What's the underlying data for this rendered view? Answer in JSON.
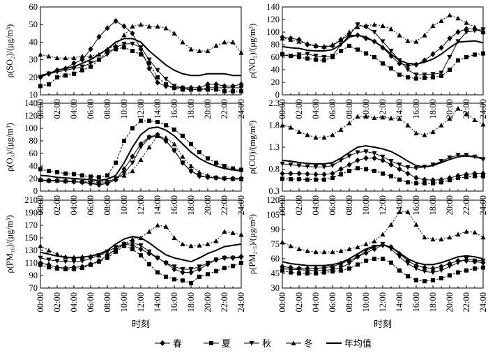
{
  "chart_data": [
    {
      "type": "line",
      "ylabel": "ρ(SO₂)/(μg/m³)",
      "xlabel": "",
      "ylim": [
        10,
        60
      ],
      "yticks": [
        10,
        20,
        30,
        40,
        50,
        60
      ],
      "x": [
        "00:00",
        "01:00",
        "02:00",
        "03:00",
        "04:00",
        "05:00",
        "06:00",
        "07:00",
        "08:00",
        "09:00",
        "10:00",
        "11:00",
        "12:00",
        "13:00",
        "14:00",
        "15:00",
        "16:00",
        "17:00",
        "18:00",
        "19:00",
        "20:00",
        "21:00",
        "22:00",
        "23:00",
        "24:00"
      ],
      "series": [
        {
          "name": "春",
          "values": [
            20,
            22,
            24,
            25,
            28,
            30,
            36,
            43,
            48,
            52,
            49,
            45,
            36,
            25,
            17,
            15,
            14,
            14,
            14,
            14,
            16,
            16,
            15,
            15,
            16
          ]
        },
        {
          "name": "夏",
          "values": [
            15,
            16,
            20,
            21,
            22,
            24,
            26,
            30,
            35,
            36,
            37,
            35,
            33,
            28,
            20,
            16,
            14,
            13,
            13,
            13,
            13,
            13,
            12,
            12,
            12
          ]
        },
        {
          "name": "秋",
          "values": [
            20,
            22,
            23,
            24,
            25,
            26,
            28,
            30,
            33,
            37,
            39,
            39,
            37,
            30,
            24,
            19,
            15,
            14,
            13,
            13,
            14,
            14,
            14,
            14,
            14
          ]
        },
        {
          "name": "冬",
          "values": [
            33,
            32,
            31,
            31,
            31,
            32,
            32,
            33,
            36,
            38,
            44,
            49,
            50,
            49,
            49,
            48,
            45,
            40,
            36,
            35,
            35,
            38,
            40,
            40,
            34
          ]
        },
        {
          "name": "年均值",
          "values": [
            21,
            22,
            24,
            25,
            26,
            28,
            30,
            33,
            36,
            40,
            42,
            42,
            40,
            35,
            31,
            27,
            24,
            22,
            21,
            21,
            22,
            22,
            22,
            21,
            21
          ]
        }
      ]
    },
    {
      "type": "line",
      "ylabel": "ρ(NO₂)/(μg/m³)",
      "xlabel": "",
      "ylim": [
        0,
        140
      ],
      "yticks": [
        0,
        20,
        40,
        60,
        80,
        100,
        120,
        140
      ],
      "x": [
        "00:00",
        "01:00",
        "02:00",
        "03:00",
        "04:00",
        "05:00",
        "06:00",
        "07:00",
        "08:00",
        "09:00",
        "10:00",
        "11:00",
        "12:00",
        "13:00",
        "14:00",
        "15:00",
        "16:00",
        "17:00",
        "18:00",
        "19:00",
        "20:00",
        "21:00",
        "22:00",
        "23:00",
        "24:00"
      ],
      "series": [
        {
          "name": "春",
          "values": [
            92,
            90,
            88,
            80,
            78,
            76,
            78,
            88,
            95,
            95,
            90,
            85,
            75,
            62,
            50,
            47,
            48,
            55,
            65,
            75,
            90,
            100,
            105,
            105,
            100
          ]
        },
        {
          "name": "夏",
          "values": [
            65,
            62,
            60,
            58,
            56,
            55,
            60,
            70,
            78,
            72,
            66,
            60,
            50,
            42,
            32,
            28,
            26,
            27,
            28,
            30,
            40,
            55,
            60,
            64,
            66
          ]
        },
        {
          "name": "秋",
          "values": [
            63,
            62,
            64,
            65,
            62,
            60,
            62,
            80,
            95,
            112,
            108,
            100,
            85,
            70,
            55,
            40,
            32,
            32,
            33,
            35,
            60,
            85,
            100,
            102,
            104
          ]
        },
        {
          "name": "冬",
          "values": [
            90,
            88,
            85,
            82,
            78,
            77,
            80,
            88,
            100,
            108,
            110,
            112,
            110,
            105,
            95,
            86,
            85,
            95,
            110,
            118,
            127,
            122,
            115,
            108,
            100
          ]
        },
        {
          "name": "年均值",
          "values": [
            77,
            75,
            74,
            71,
            70,
            70,
            72,
            80,
            92,
            95,
            92,
            85,
            76,
            65,
            55,
            50,
            49,
            52,
            57,
            65,
            75,
            84,
            85,
            86,
            83
          ]
        }
      ]
    },
    {
      "type": "line",
      "ylabel": "ρ(O₃)/(μg/m³)",
      "xlabel": "",
      "ylim": [
        0,
        140
      ],
      "yticks": [
        0,
        20,
        40,
        60,
        80,
        100,
        120,
        140
      ],
      "x": [
        "00:00",
        "01:00",
        "02:00",
        "03:00",
        "04:00",
        "05:00",
        "06:00",
        "07:00",
        "08:00",
        "09:00",
        "10:00",
        "11:00",
        "12:00",
        "13:00",
        "14:00",
        "15:00",
        "16:00",
        "17:00",
        "18:00",
        "19:00",
        "20:00",
        "21:00",
        "22:00",
        "23:00",
        "24:00"
      ],
      "series": [
        {
          "name": "春",
          "values": [
            18,
            17,
            17,
            16,
            15,
            14,
            12,
            10,
            12,
            18,
            35,
            55,
            75,
            86,
            90,
            80,
            65,
            45,
            32,
            24,
            22,
            21,
            20,
            20,
            20
          ]
        },
        {
          "name": "夏",
          "values": [
            35,
            32,
            30,
            28,
            27,
            25,
            23,
            22,
            25,
            45,
            80,
            100,
            112,
            112,
            110,
            105,
            98,
            88,
            75,
            62,
            52,
            45,
            40,
            36,
            34
          ]
        },
        {
          "name": "秋",
          "values": [
            17,
            16,
            16,
            15,
            15,
            14,
            13,
            12,
            14,
            20,
            28,
            45,
            70,
            85,
            88,
            80,
            65,
            45,
            32,
            25,
            22,
            21,
            20,
            19,
            19
          ]
        },
        {
          "name": "冬",
          "values": [
            18,
            17,
            17,
            16,
            16,
            15,
            15,
            14,
            16,
            20,
            25,
            32,
            50,
            70,
            88,
            85,
            75,
            55,
            40,
            30,
            25,
            22,
            21,
            20,
            19
          ]
        },
        {
          "name": "年均值",
          "values": [
            25,
            24,
            22,
            21,
            20,
            19,
            18,
            17,
            19,
            25,
            45,
            70,
            90,
            100,
            102,
            97,
            88,
            75,
            62,
            52,
            45,
            40,
            36,
            34,
            32
          ]
        }
      ]
    },
    {
      "type": "line",
      "ylabel": "ρ(CO)/(mg/m³)",
      "xlabel": "",
      "ylim": [
        0.3,
        2.3
      ],
      "yticks": [
        0.3,
        0.8,
        1.3,
        1.8,
        2.3
      ],
      "x": [
        "00:00",
        "01:00",
        "02:00",
        "03:00",
        "04:00",
        "05:00",
        "06:00",
        "07:00",
        "08:00",
        "09:00",
        "10:00",
        "11:00",
        "12:00",
        "13:00",
        "14:00",
        "15:00",
        "16:00",
        "17:00",
        "18:00",
        "19:00",
        "20:00",
        "21:00",
        "22:00",
        "23:00",
        "24:00"
      ],
      "series": [
        {
          "name": "春",
          "values": [
            0.7,
            0.7,
            0.7,
            0.69,
            0.68,
            0.68,
            0.7,
            0.8,
            0.9,
            1.0,
            1.05,
            1.05,
            1.0,
            0.9,
            0.8,
            0.7,
            0.6,
            0.56,
            0.55,
            0.56,
            0.6,
            0.65,
            0.68,
            0.7,
            0.7
          ]
        },
        {
          "name": "夏",
          "values": [
            0.58,
            0.57,
            0.57,
            0.56,
            0.56,
            0.56,
            0.6,
            0.68,
            0.76,
            0.82,
            0.8,
            0.76,
            0.7,
            0.64,
            0.56,
            0.5,
            0.48,
            0.48,
            0.48,
            0.5,
            0.55,
            0.6,
            0.62,
            0.64,
            0.64
          ]
        },
        {
          "name": "秋",
          "values": [
            0.92,
            0.9,
            0.88,
            0.86,
            0.85,
            0.85,
            0.88,
            1.0,
            1.1,
            1.18,
            1.2,
            1.16,
            1.08,
            0.98,
            0.9,
            0.84,
            0.82,
            0.85,
            0.9,
            0.98,
            1.06,
            1.12,
            1.12,
            1.08,
            1.02
          ]
        },
        {
          "name": "冬",
          "values": [
            1.8,
            1.75,
            1.65,
            1.58,
            1.52,
            1.52,
            1.58,
            1.7,
            1.85,
            2.0,
            2.0,
            1.97,
            1.98,
            1.96,
            1.95,
            1.8,
            1.62,
            1.58,
            1.65,
            1.8,
            1.95,
            2.18,
            2.06,
            1.92,
            1.82
          ]
        },
        {
          "name": "年均值",
          "values": [
            1.0,
            0.98,
            0.95,
            0.93,
            0.92,
            0.92,
            0.95,
            1.05,
            1.18,
            1.3,
            1.33,
            1.3,
            1.26,
            1.2,
            1.1,
            0.98,
            0.88,
            0.85,
            0.88,
            0.95,
            1.02,
            1.08,
            1.1,
            1.08,
            1.05
          ]
        }
      ]
    },
    {
      "type": "line",
      "ylabel": "ρ(PM₁₀)/(μg/m³)",
      "xlabel": "时刻",
      "ylim": [
        70,
        210
      ],
      "yticks": [
        70,
        90,
        110,
        130,
        150,
        170,
        190,
        210
      ],
      "x": [
        "00:00",
        "01:00",
        "02:00",
        "03:00",
        "04:00",
        "05:00",
        "06:00",
        "07:00",
        "08:00",
        "09:00",
        "10:00",
        "11:00",
        "12:00",
        "13:00",
        "14:00",
        "15:00",
        "16:00",
        "17:00",
        "18:00",
        "19:00",
        "20:00",
        "21:00",
        "22:00",
        "23:00",
        "24:00"
      ],
      "series": [
        {
          "name": "春",
          "values": [
            110,
            107,
            103,
            102,
            103,
            104,
            108,
            113,
            122,
            132,
            140,
            138,
            132,
            125,
            118,
            110,
            100,
            95,
            95,
            100,
            108,
            115,
            118,
            118,
            120
          ]
        },
        {
          "name": "夏",
          "values": [
            107,
            103,
            101,
            100,
            100,
            102,
            107,
            112,
            118,
            128,
            137,
            132,
            122,
            108,
            95,
            88,
            84,
            82,
            78,
            88,
            92,
            97,
            102,
            105,
            110
          ]
        },
        {
          "name": "秋",
          "values": [
            118,
            115,
            113,
            112,
            112,
            113,
            117,
            122,
            128,
            135,
            140,
            142,
            138,
            128,
            118,
            110,
            104,
            100,
            100,
            104,
            110,
            115,
            118,
            118,
            118
          ]
        },
        {
          "name": "冬",
          "values": [
            137,
            130,
            124,
            120,
            119,
            120,
            121,
            122,
            125,
            130,
            140,
            148,
            150,
            160,
            170,
            168,
            150,
            140,
            137,
            138,
            140,
            145,
            160,
            158,
            155
          ]
        },
        {
          "name": "年均值",
          "values": [
            127,
            124,
            121,
            119,
            118,
            119,
            121,
            124,
            130,
            140,
            148,
            152,
            150,
            142,
            132,
            123,
            118,
            115,
            112,
            118,
            125,
            130,
            136,
            138,
            140
          ]
        }
      ]
    },
    {
      "type": "line",
      "ylabel": "ρ(PM₂.₅)/(μg/m³)",
      "xlabel": "时刻",
      "ylim": [
        30,
        120
      ],
      "yticks": [
        30,
        45,
        60,
        75,
        90,
        105,
        120
      ],
      "x": [
        "00:00",
        "01:00",
        "02:00",
        "03:00",
        "04:00",
        "05:00",
        "06:00",
        "07:00",
        "08:00",
        "09:00",
        "10:00",
        "11:00",
        "12:00",
        "13:00",
        "14:00",
        "15:00",
        "16:00",
        "17:00",
        "18:00",
        "19:00",
        "20:00",
        "21:00",
        "22:00",
        "23:00",
        "24:00"
      ],
      "series": [
        {
          "name": "春",
          "values": [
            52,
            51,
            50,
            50,
            50,
            51,
            52,
            55,
            58,
            62,
            66,
            70,
            74,
            72,
            65,
            58,
            53,
            51,
            50,
            52,
            55,
            58,
            58,
            57,
            56
          ]
        },
        {
          "name": "夏",
          "values": [
            48,
            46,
            45,
            45,
            45,
            46,
            47,
            48,
            50,
            54,
            58,
            60,
            60,
            56,
            48,
            42,
            38,
            37,
            38,
            40,
            43,
            46,
            48,
            50,
            51
          ]
        },
        {
          "name": "秋",
          "values": [
            50,
            49,
            49,
            48,
            48,
            48,
            49,
            51,
            55,
            62,
            68,
            72,
            75,
            70,
            62,
            55,
            50,
            47,
            46,
            48,
            52,
            56,
            60,
            58,
            58
          ]
        },
        {
          "name": "冬",
          "values": [
            77,
            73,
            70,
            68,
            67,
            67,
            67,
            68,
            70,
            72,
            75,
            78,
            85,
            95,
            108,
            108,
            95,
            82,
            80,
            80,
            82,
            85,
            88,
            87,
            82
          ]
        },
        {
          "name": "年均值",
          "values": [
            57,
            55,
            54,
            53,
            53,
            53,
            54,
            56,
            60,
            65,
            70,
            73,
            74,
            72,
            66,
            60,
            56,
            54,
            54,
            56,
            59,
            62,
            63,
            62,
            60
          ]
        }
      ]
    }
  ],
  "xticks": [
    "00:00",
    "02:00",
    "04:00",
    "06:00",
    "08:00",
    "10:00",
    "12:00",
    "14:00",
    "16:00",
    "18:00",
    "20:00",
    "22:00",
    "24:00"
  ],
  "legend": {
    "items": [
      {
        "label": "春",
        "marker": "diamond"
      },
      {
        "label": "夏",
        "marker": "square"
      },
      {
        "label": "秋",
        "marker": "triangle-down"
      },
      {
        "label": "冬",
        "marker": "triangle-up"
      },
      {
        "label": "年均值",
        "marker": "none"
      }
    ]
  },
  "series_styles": [
    {
      "marker": "diamond",
      "dash": "none"
    },
    {
      "marker": "square",
      "dash": "3,2"
    },
    {
      "marker": "triangle-down",
      "dash": "none"
    },
    {
      "marker": "triangle-up",
      "dash": "2,2"
    },
    {
      "marker": "none",
      "dash": "none",
      "bold": true
    }
  ]
}
